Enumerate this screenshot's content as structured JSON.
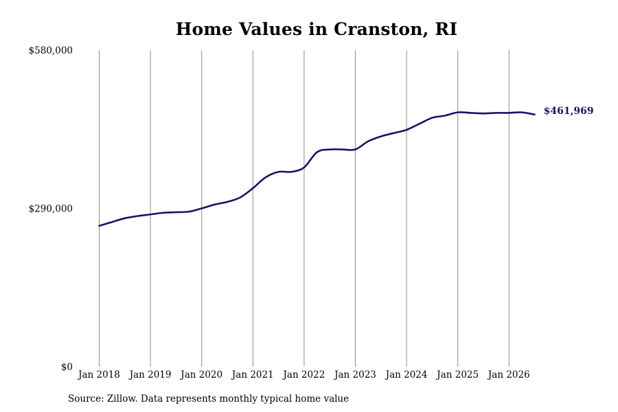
{
  "chart_data": {
    "type": "line",
    "title": "Home Values in Cranston, RI",
    "xlabel": "",
    "ylabel": "",
    "x_tick_labels": [
      "Jan 2018",
      "Jan 2019",
      "Jan 2020",
      "Jan 2021",
      "Jan 2022",
      "Jan 2023",
      "Jan 2024",
      "Jan 2025",
      "Jan 2026"
    ],
    "y_tick_labels": [
      "$0",
      "$290,000",
      "$580,000"
    ],
    "y_ticks": [
      0,
      290000,
      580000
    ],
    "ylim": [
      0,
      580000
    ],
    "xlim": [
      "2017-09",
      "2026-11"
    ],
    "grid": "vertical lines at x ticks",
    "end_label": "$461,969",
    "colors": {
      "line": "#141464",
      "grid": "#8c8c8c"
    },
    "series": [
      {
        "dates": [
          "2018-01",
          "2018-04",
          "2018-07",
          "2018-10",
          "2019-01",
          "2019-04",
          "2019-07",
          "2019-10",
          "2020-01",
          "2020-04",
          "2020-07",
          "2020-10",
          "2021-01",
          "2021-04",
          "2021-07",
          "2021-10",
          "2022-01",
          "2022-04",
          "2022-07",
          "2022-10",
          "2023-01",
          "2023-04",
          "2023-07",
          "2023-10",
          "2024-01",
          "2024-04",
          "2024-07",
          "2024-10",
          "2025-01",
          "2025-04",
          "2025-07",
          "2025-10",
          "2026-01",
          "2026-04",
          "2026-07"
        ],
        "values": [
          258000,
          265000,
          272000,
          276000,
          279000,
          282000,
          283000,
          284000,
          290000,
          297000,
          302000,
          310000,
          327000,
          347000,
          357000,
          357000,
          365000,
          393000,
          398000,
          398000,
          398000,
          413000,
          422000,
          428000,
          434000,
          445000,
          456000,
          460000,
          466000,
          465000,
          464000,
          465000,
          465000,
          466000,
          461969
        ]
      }
    ]
  },
  "source_note": "Source: Zillow. Data represents monthly typical home value"
}
